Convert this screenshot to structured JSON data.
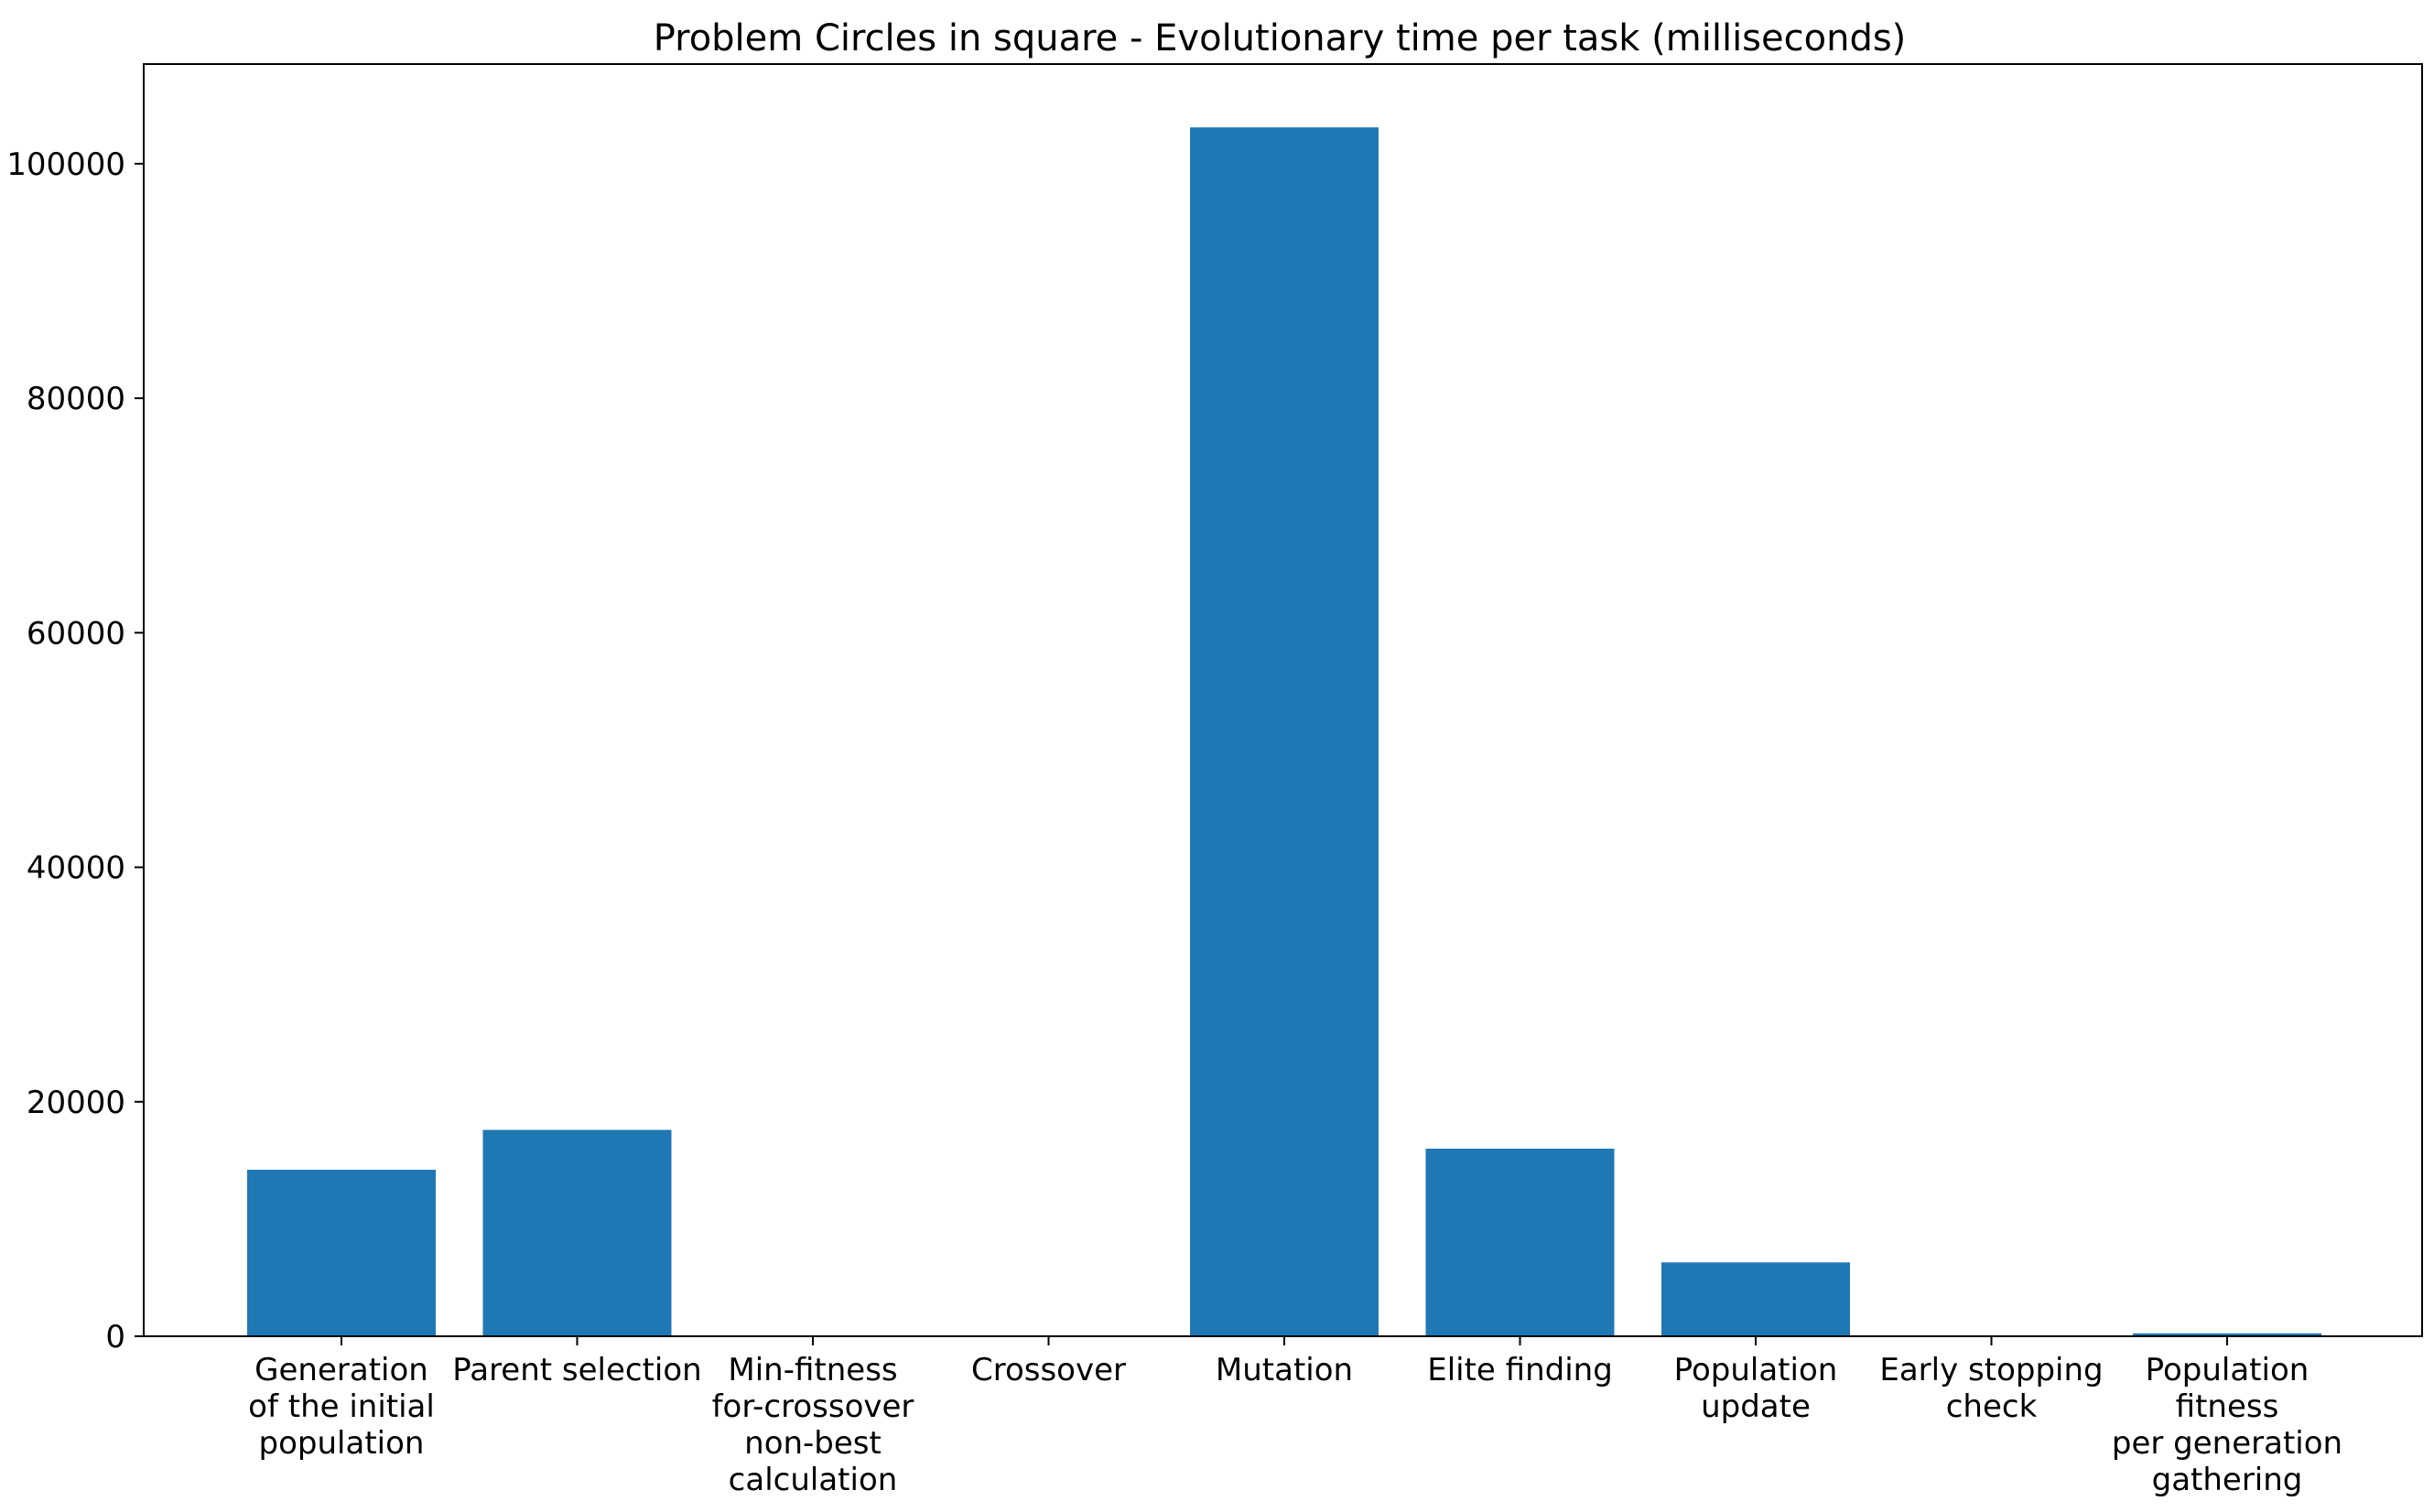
{
  "chart_data": {
    "type": "bar",
    "title": "Problem Circles in square - Evolutionary time per task (milliseconds)",
    "xlabel": "",
    "ylabel": "",
    "ylim": [
      0,
      108500
    ],
    "yticks": [
      0,
      20000,
      40000,
      60000,
      80000,
      100000
    ],
    "ytick_labels": [
      "0",
      "20000",
      "40000",
      "60000",
      "80000",
      "100000"
    ],
    "grid": false,
    "bar_color": "#1f77b4",
    "categories": [
      [
        "Generation",
        "of the initial",
        "population"
      ],
      [
        "Parent selection"
      ],
      [
        "Min-fitness",
        "for-crossover",
        "non-best",
        "calculation"
      ],
      [
        "Crossover"
      ],
      [
        "Mutation"
      ],
      [
        "Elite finding"
      ],
      [
        "Population",
        "update"
      ],
      [
        "Early stopping",
        "check"
      ],
      [
        "Population",
        "fitness",
        "per generation",
        "gathering"
      ]
    ],
    "values": [
      14200,
      17600,
      0,
      0,
      103100,
      16000,
      6300,
      0,
      250
    ]
  }
}
